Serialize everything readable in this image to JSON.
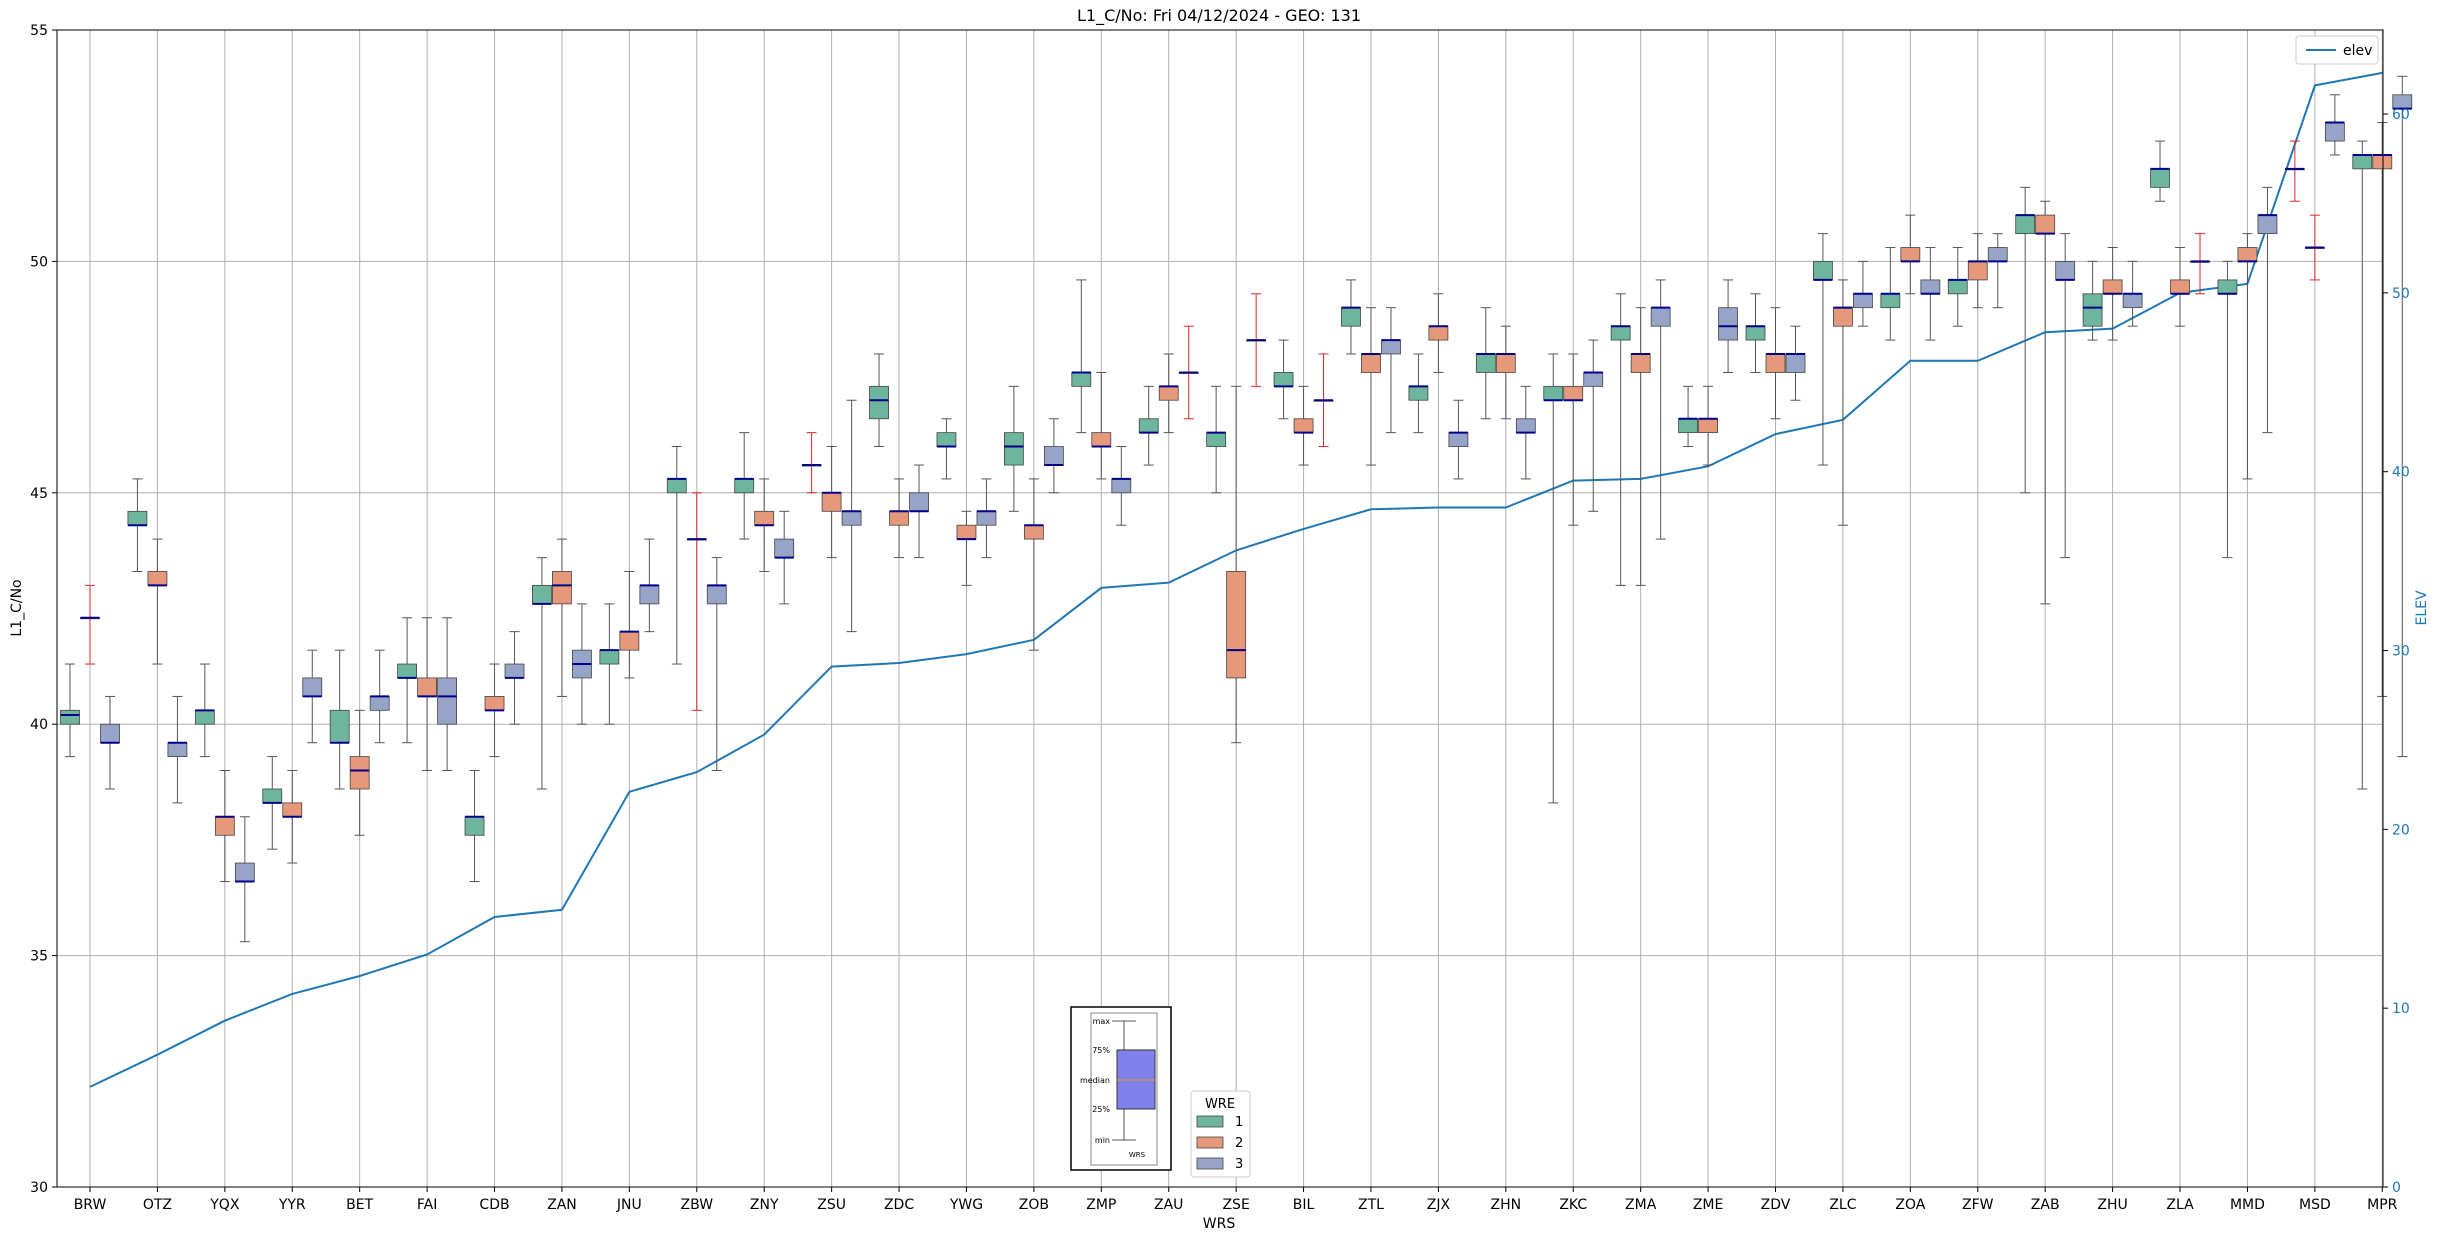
{
  "chart_data": {
    "type": "box",
    "title": "L1_C/No: Fri 04/12/2024 - GEO: 131",
    "xlabel": "WRS",
    "ylabel": "L1_C/No",
    "y2label": "ELEV",
    "ylim": [
      30,
      55
    ],
    "y2lim": [
      0,
      64.7
    ],
    "yticks": [
      30,
      35,
      40,
      45,
      50,
      55
    ],
    "y2ticks": [
      0,
      10,
      20,
      30,
      40,
      50,
      60
    ],
    "grid": true,
    "categories": [
      "BRW",
      "OTZ",
      "YQX",
      "YYR",
      "BET",
      "FAI",
      "CDB",
      "ZAN",
      "JNU",
      "ZBW",
      "ZNY",
      "ZSU",
      "ZDC",
      "YWG",
      "ZOB",
      "ZMP",
      "ZAU",
      "ZSE",
      "BIL",
      "ZTL",
      "ZJX",
      "ZHN",
      "ZKC",
      "ZMA",
      "ZME",
      "ZDV",
      "ZLC",
      "ZOA",
      "ZFW",
      "ZAB",
      "ZHU",
      "ZLA",
      "MMD",
      "MSD",
      "MPR"
    ],
    "elev_series": {
      "name": "elev",
      "values": [
        5.6,
        7.4,
        9.3,
        10.8,
        11.8,
        13.0,
        15.1,
        15.5,
        22.1,
        23.2,
        25.3,
        29.1,
        29.3,
        29.8,
        30.6,
        33.5,
        33.8,
        35.6,
        36.8,
        37.9,
        38.0,
        38.0,
        39.5,
        39.6,
        40.3,
        42.1,
        42.9,
        46.2,
        46.2,
        47.8,
        48.0,
        50.0,
        50.5,
        61.6,
        62.3
      ]
    },
    "wre_legend": {
      "title": "WRE",
      "items": [
        {
          "label": "1",
          "color": "#6db59c"
        },
        {
          "label": "2",
          "color": "#e5987a"
        },
        {
          "label": "3",
          "color": "#96a4c8"
        }
      ]
    },
    "elev_legend": {
      "label": "elev",
      "color": "#1f77b4"
    },
    "inset_legend": {
      "labels": [
        "max",
        "75%",
        "median",
        "25%",
        "min"
      ],
      "xlabel": "WRS"
    },
    "boxes": [
      {
        "wrs": "BRW",
        "wre": 1,
        "min": 39.3,
        "q1": 40.0,
        "median": 40.2,
        "q3": 40.3,
        "max": 41.3
      },
      {
        "wrs": "BRW",
        "wre": 2,
        "min": 41.3,
        "q1": 42.3,
        "median": 42.3,
        "q3": 42.3,
        "max": 43.0
      },
      {
        "wrs": "BRW",
        "wre": 3,
        "min": 38.6,
        "q1": 39.6,
        "median": 39.6,
        "q3": 40.0,
        "max": 40.6
      },
      {
        "wrs": "OTZ",
        "wre": 1,
        "min": 43.3,
        "q1": 44.3,
        "median": 44.3,
        "q3": 44.6,
        "max": 45.3
      },
      {
        "wrs": "OTZ",
        "wre": 2,
        "min": 41.3,
        "q1": 43.0,
        "median": 43.0,
        "q3": 43.3,
        "max": 44.0
      },
      {
        "wrs": "OTZ",
        "wre": 3,
        "min": 38.3,
        "q1": 39.3,
        "median": 39.6,
        "q3": 39.6,
        "max": 40.6
      },
      {
        "wrs": "YQX",
        "wre": 1,
        "min": 39.3,
        "q1": 40.0,
        "median": 40.3,
        "q3": 40.3,
        "max": 41.3
      },
      {
        "wrs": "YQX",
        "wre": 2,
        "min": 36.6,
        "q1": 37.6,
        "median": 38.0,
        "q3": 38.0,
        "max": 39.0
      },
      {
        "wrs": "YQX",
        "wre": 3,
        "min": 35.3,
        "q1": 36.6,
        "median": 36.6,
        "q3": 37.0,
        "max": 38.0
      },
      {
        "wrs": "YYR",
        "wre": 1,
        "min": 37.3,
        "q1": 38.3,
        "median": 38.3,
        "q3": 38.6,
        "max": 39.3
      },
      {
        "wrs": "YYR",
        "wre": 2,
        "min": 37.0,
        "q1": 38.0,
        "median": 38.0,
        "q3": 38.3,
        "max": 39.0
      },
      {
        "wrs": "YYR",
        "wre": 3,
        "min": 39.6,
        "q1": 40.6,
        "median": 40.6,
        "q3": 41.0,
        "max": 41.6
      },
      {
        "wrs": "BET",
        "wre": 1,
        "min": 38.6,
        "q1": 39.6,
        "median": 39.6,
        "q3": 40.3,
        "max": 41.6
      },
      {
        "wrs": "BET",
        "wre": 2,
        "min": 37.6,
        "q1": 38.6,
        "median": 39.0,
        "q3": 39.3,
        "max": 40.3
      },
      {
        "wrs": "BET",
        "wre": 3,
        "min": 39.6,
        "q1": 40.3,
        "median": 40.6,
        "q3": 40.6,
        "max": 41.6
      },
      {
        "wrs": "FAI",
        "wre": 1,
        "min": 39.6,
        "q1": 41.0,
        "median": 41.0,
        "q3": 41.3,
        "max": 42.3
      },
      {
        "wrs": "FAI",
        "wre": 2,
        "min": 39.0,
        "q1": 40.6,
        "median": 40.6,
        "q3": 41.0,
        "max": 42.3
      },
      {
        "wrs": "FAI",
        "wre": 3,
        "min": 39.0,
        "q1": 40.0,
        "median": 40.6,
        "q3": 41.0,
        "max": 42.3
      },
      {
        "wrs": "CDB",
        "wre": 1,
        "min": 36.6,
        "q1": 37.6,
        "median": 38.0,
        "q3": 38.0,
        "max": 39.0
      },
      {
        "wrs": "CDB",
        "wre": 2,
        "min": 39.3,
        "q1": 40.3,
        "median": 40.3,
        "q3": 40.6,
        "max": 41.3
      },
      {
        "wrs": "CDB",
        "wre": 3,
        "min": 40.0,
        "q1": 41.0,
        "median": 41.0,
        "q3": 41.3,
        "max": 42.0
      },
      {
        "wrs": "ZAN",
        "wre": 1,
        "min": 38.6,
        "q1": 42.6,
        "median": 42.6,
        "q3": 43.0,
        "max": 43.6
      },
      {
        "wrs": "ZAN",
        "wre": 2,
        "min": 40.6,
        "q1": 42.6,
        "median": 43.0,
        "q3": 43.3,
        "max": 44.0
      },
      {
        "wrs": "ZAN",
        "wre": 3,
        "min": 40.0,
        "q1": 41.0,
        "median": 41.3,
        "q3": 41.6,
        "max": 42.6
      },
      {
        "wrs": "JNU",
        "wre": 1,
        "min": 40.0,
        "q1": 41.3,
        "median": 41.6,
        "q3": 41.6,
        "max": 42.6
      },
      {
        "wrs": "JNU",
        "wre": 2,
        "min": 41.0,
        "q1": 41.6,
        "median": 42.0,
        "q3": 42.0,
        "max": 43.3
      },
      {
        "wrs": "JNU",
        "wre": 3,
        "min": 42.0,
        "q1": 42.6,
        "median": 43.0,
        "q3": 43.0,
        "max": 44.0
      },
      {
        "wrs": "ZBW",
        "wre": 1,
        "min": 41.3,
        "q1": 45.0,
        "median": 45.3,
        "q3": 45.3,
        "max": 46.0
      },
      {
        "wrs": "ZBW",
        "wre": 2,
        "min": 40.3,
        "q1": 44.0,
        "median": 44.0,
        "q3": 44.0,
        "max": 45.0
      },
      {
        "wrs": "ZBW",
        "wre": 3,
        "min": 39.0,
        "q1": 42.6,
        "median": 43.0,
        "q3": 43.0,
        "max": 43.6
      },
      {
        "wrs": "ZNY",
        "wre": 1,
        "min": 44.0,
        "q1": 45.0,
        "median": 45.3,
        "q3": 45.3,
        "max": 46.3
      },
      {
        "wrs": "ZNY",
        "wre": 2,
        "min": 43.3,
        "q1": 44.3,
        "median": 44.3,
        "q3": 44.6,
        "max": 45.3
      },
      {
        "wrs": "ZNY",
        "wre": 3,
        "min": 42.6,
        "q1": 43.6,
        "median": 43.6,
        "q3": 44.0,
        "max": 44.6
      },
      {
        "wrs": "ZSU",
        "wre": 1,
        "min": 45.0,
        "q1": 45.6,
        "median": 45.6,
        "q3": 45.6,
        "max": 46.3
      },
      {
        "wrs": "ZSU",
        "wre": 2,
        "min": 43.6,
        "q1": 44.6,
        "median": 45.0,
        "q3": 45.0,
        "max": 46.0
      },
      {
        "wrs": "ZSU",
        "wre": 3,
        "min": 42.0,
        "q1": 44.3,
        "median": 44.6,
        "q3": 44.6,
        "max": 47.0
      },
      {
        "wrs": "ZDC",
        "wre": 1,
        "min": 46.0,
        "q1": 46.6,
        "median": 47.0,
        "q3": 47.3,
        "max": 48.0
      },
      {
        "wrs": "ZDC",
        "wre": 2,
        "min": 43.6,
        "q1": 44.3,
        "median": 44.6,
        "q3": 44.6,
        "max": 45.3
      },
      {
        "wrs": "ZDC",
        "wre": 3,
        "min": 43.6,
        "q1": 44.6,
        "median": 44.6,
        "q3": 45.0,
        "max": 45.6
      },
      {
        "wrs": "YWG",
        "wre": 1,
        "min": 45.3,
        "q1": 46.0,
        "median": 46.0,
        "q3": 46.3,
        "max": 46.6
      },
      {
        "wrs": "YWG",
        "wre": 2,
        "min": 43.0,
        "q1": 44.0,
        "median": 44.0,
        "q3": 44.3,
        "max": 44.6
      },
      {
        "wrs": "YWG",
        "wre": 3,
        "min": 43.6,
        "q1": 44.3,
        "median": 44.6,
        "q3": 44.6,
        "max": 45.3
      },
      {
        "wrs": "ZOB",
        "wre": 1,
        "min": 44.6,
        "q1": 45.6,
        "median": 46.0,
        "q3": 46.3,
        "max": 47.3
      },
      {
        "wrs": "ZOB",
        "wre": 2,
        "min": 41.6,
        "q1": 44.0,
        "median": 44.3,
        "q3": 44.3,
        "max": 45.3
      },
      {
        "wrs": "ZOB",
        "wre": 3,
        "min": 45.0,
        "q1": 45.6,
        "median": 45.6,
        "q3": 46.0,
        "max": 46.6
      },
      {
        "wrs": "ZMP",
        "wre": 1,
        "min": 46.3,
        "q1": 47.3,
        "median": 47.6,
        "q3": 47.6,
        "max": 49.6
      },
      {
        "wrs": "ZMP",
        "wre": 2,
        "min": 45.3,
        "q1": 46.0,
        "median": 46.0,
        "q3": 46.3,
        "max": 47.6
      },
      {
        "wrs": "ZMP",
        "wre": 3,
        "min": 44.3,
        "q1": 45.0,
        "median": 45.3,
        "q3": 45.3,
        "max": 46.0
      },
      {
        "wrs": "ZAU",
        "wre": 1,
        "min": 45.6,
        "q1": 46.3,
        "median": 46.3,
        "q3": 46.6,
        "max": 47.3
      },
      {
        "wrs": "ZAU",
        "wre": 2,
        "min": 46.3,
        "q1": 47.0,
        "median": 47.3,
        "q3": 47.3,
        "max": 48.0
      },
      {
        "wrs": "ZAU",
        "wre": 3,
        "min": 46.6,
        "q1": 47.6,
        "median": 47.6,
        "q3": 47.6,
        "max": 48.6
      },
      {
        "wrs": "ZSE",
        "wre": 1,
        "min": 45.0,
        "q1": 46.0,
        "median": 46.3,
        "q3": 46.3,
        "max": 47.3
      },
      {
        "wrs": "ZSE",
        "wre": 2,
        "min": 39.6,
        "q1": 41.0,
        "median": 41.6,
        "q3": 43.3,
        "max": 47.3
      },
      {
        "wrs": "ZSE",
        "wre": 3,
        "min": 47.3,
        "q1": 48.3,
        "median": 48.3,
        "q3": 48.3,
        "max": 49.3
      },
      {
        "wrs": "BIL",
        "wre": 1,
        "min": 46.6,
        "q1": 47.3,
        "median": 47.3,
        "q3": 47.6,
        "max": 48.3
      },
      {
        "wrs": "BIL",
        "wre": 2,
        "min": 45.6,
        "q1": 46.3,
        "median": 46.3,
        "q3": 46.6,
        "max": 47.3
      },
      {
        "wrs": "BIL",
        "wre": 3,
        "min": 46.0,
        "q1": 47.0,
        "median": 47.0,
        "q3": 47.0,
        "max": 48.0
      },
      {
        "wrs": "ZTL",
        "wre": 1,
        "min": 48.0,
        "q1": 48.6,
        "median": 49.0,
        "q3": 49.0,
        "max": 49.6
      },
      {
        "wrs": "ZTL",
        "wre": 2,
        "min": 45.6,
        "q1": 47.6,
        "median": 48.0,
        "q3": 48.0,
        "max": 49.0
      },
      {
        "wrs": "ZTL",
        "wre": 3,
        "min": 46.3,
        "q1": 48.0,
        "median": 48.3,
        "q3": 48.3,
        "max": 49.0
      },
      {
        "wrs": "ZJX",
        "wre": 1,
        "min": 46.3,
        "q1": 47.0,
        "median": 47.3,
        "q3": 47.3,
        "max": 48.0
      },
      {
        "wrs": "ZJX",
        "wre": 2,
        "min": 47.6,
        "q1": 48.3,
        "median": 48.6,
        "q3": 48.6,
        "max": 49.3
      },
      {
        "wrs": "ZJX",
        "wre": 3,
        "min": 45.3,
        "q1": 46.0,
        "median": 46.3,
        "q3": 46.3,
        "max": 47.0
      },
      {
        "wrs": "ZHN",
        "wre": 1,
        "min": 46.6,
        "q1": 47.6,
        "median": 48.0,
        "q3": 48.0,
        "max": 49.0
      },
      {
        "wrs": "ZHN",
        "wre": 2,
        "min": 46.6,
        "q1": 47.6,
        "median": 48.0,
        "q3": 48.0,
        "max": 48.6
      },
      {
        "wrs": "ZHN",
        "wre": 3,
        "min": 45.3,
        "q1": 46.3,
        "median": 46.3,
        "q3": 46.6,
        "max": 47.3
      },
      {
        "wrs": "ZKC",
        "wre": 1,
        "min": 38.3,
        "q1": 47.0,
        "median": 47.0,
        "q3": 47.3,
        "max": 48.0
      },
      {
        "wrs": "ZKC",
        "wre": 2,
        "min": 44.3,
        "q1": 47.0,
        "median": 47.0,
        "q3": 47.3,
        "max": 48.0
      },
      {
        "wrs": "ZKC",
        "wre": 3,
        "min": 44.6,
        "q1": 47.3,
        "median": 47.6,
        "q3": 47.6,
        "max": 48.3
      },
      {
        "wrs": "ZMA",
        "wre": 1,
        "min": 43.0,
        "q1": 48.3,
        "median": 48.6,
        "q3": 48.6,
        "max": 49.3
      },
      {
        "wrs": "ZMA",
        "wre": 2,
        "min": 43.0,
        "q1": 47.6,
        "median": 48.0,
        "q3": 48.0,
        "max": 49.0
      },
      {
        "wrs": "ZMA",
        "wre": 3,
        "min": 44.0,
        "q1": 48.6,
        "median": 49.0,
        "q3": 49.0,
        "max": 49.6
      },
      {
        "wrs": "ZME",
        "wre": 1,
        "min": 46.0,
        "q1": 46.3,
        "median": 46.6,
        "q3": 46.6,
        "max": 47.3
      },
      {
        "wrs": "ZME",
        "wre": 2,
        "min": 45.6,
        "q1": 46.3,
        "median": 46.6,
        "q3": 46.6,
        "max": 47.3
      },
      {
        "wrs": "ZME",
        "wre": 3,
        "min": 47.6,
        "q1": 48.3,
        "median": 48.6,
        "q3": 49.0,
        "max": 49.6
      },
      {
        "wrs": "ZDV",
        "wre": 1,
        "min": 47.6,
        "q1": 48.3,
        "median": 48.6,
        "q3": 48.6,
        "max": 49.3
      },
      {
        "wrs": "ZDV",
        "wre": 2,
        "min": 46.6,
        "q1": 47.6,
        "median": 48.0,
        "q3": 48.0,
        "max": 49.0
      },
      {
        "wrs": "ZDV",
        "wre": 3,
        "min": 47.0,
        "q1": 47.6,
        "median": 48.0,
        "q3": 48.0,
        "max": 48.6
      },
      {
        "wrs": "ZLC",
        "wre": 1,
        "min": 45.6,
        "q1": 49.6,
        "median": 49.6,
        "q3": 50.0,
        "max": 50.6
      },
      {
        "wrs": "ZLC",
        "wre": 2,
        "min": 44.3,
        "q1": 48.6,
        "median": 49.0,
        "q3": 49.0,
        "max": 49.6
      },
      {
        "wrs": "ZLC",
        "wre": 3,
        "min": 48.6,
        "q1": 49.0,
        "median": 49.3,
        "q3": 49.3,
        "max": 50.0
      },
      {
        "wrs": "ZOA",
        "wre": 1,
        "min": 48.3,
        "q1": 49.0,
        "median": 49.3,
        "q3": 49.3,
        "max": 50.3
      },
      {
        "wrs": "ZOA",
        "wre": 2,
        "min": 49.3,
        "q1": 50.0,
        "median": 50.0,
        "q3": 50.3,
        "max": 51.0
      },
      {
        "wrs": "ZOA",
        "wre": 3,
        "min": 48.3,
        "q1": 49.3,
        "median": 49.3,
        "q3": 49.6,
        "max": 50.3
      },
      {
        "wrs": "ZFW",
        "wre": 1,
        "min": 48.6,
        "q1": 49.3,
        "median": 49.6,
        "q3": 49.6,
        "max": 50.3
      },
      {
        "wrs": "ZFW",
        "wre": 2,
        "min": 49.0,
        "q1": 49.6,
        "median": 50.0,
        "q3": 50.0,
        "max": 50.6
      },
      {
        "wrs": "ZFW",
        "wre": 3,
        "min": 49.0,
        "q1": 50.0,
        "median": 50.0,
        "q3": 50.3,
        "max": 50.6
      },
      {
        "wrs": "ZAB",
        "wre": 1,
        "min": 45.0,
        "q1": 50.6,
        "median": 51.0,
        "q3": 51.0,
        "max": 51.6
      },
      {
        "wrs": "ZAB",
        "wre": 2,
        "min": 42.6,
        "q1": 50.6,
        "median": 50.6,
        "q3": 51.0,
        "max": 51.3
      },
      {
        "wrs": "ZAB",
        "wre": 3,
        "min": 43.6,
        "q1": 49.6,
        "median": 49.6,
        "q3": 50.0,
        "max": 50.6
      },
      {
        "wrs": "ZHU",
        "wre": 1,
        "min": 48.3,
        "q1": 48.6,
        "median": 49.0,
        "q3": 49.3,
        "max": 50.0
      },
      {
        "wrs": "ZHU",
        "wre": 2,
        "min": 48.3,
        "q1": 49.3,
        "median": 49.3,
        "q3": 49.6,
        "max": 50.3
      },
      {
        "wrs": "ZHU",
        "wre": 3,
        "min": 48.6,
        "q1": 49.0,
        "median": 49.3,
        "q3": 49.3,
        "max": 50.0
      },
      {
        "wrs": "ZLA",
        "wre": 1,
        "min": 51.3,
        "q1": 51.6,
        "median": 52.0,
        "q3": 52.0,
        "max": 52.6
      },
      {
        "wrs": "ZLA",
        "wre": 2,
        "min": 48.6,
        "q1": 49.3,
        "median": 49.3,
        "q3": 49.6,
        "max": 50.3
      },
      {
        "wrs": "ZLA",
        "wre": 3,
        "min": 49.3,
        "q1": 50.0,
        "median": 50.0,
        "q3": 50.0,
        "max": 50.6
      },
      {
        "wrs": "MMD",
        "wre": 1,
        "min": 43.6,
        "q1": 49.3,
        "median": 49.3,
        "q3": 49.6,
        "max": 50.0
      },
      {
        "wrs": "MMD",
        "wre": 2,
        "min": 45.3,
        "q1": 50.0,
        "median": 50.0,
        "q3": 50.3,
        "max": 50.6
      },
      {
        "wrs": "MMD",
        "wre": 3,
        "min": 46.3,
        "q1": 50.6,
        "median": 51.0,
        "q3": 51.0,
        "max": 51.6
      },
      {
        "wrs": "MSD",
        "wre": 1,
        "min": 51.3,
        "q1": 52.0,
        "median": 52.0,
        "q3": 52.0,
        "max": 52.6
      },
      {
        "wrs": "MSD",
        "wre": 2,
        "min": 49.6,
        "q1": 50.3,
        "median": 50.3,
        "q3": 50.3,
        "max": 51.0
      },
      {
        "wrs": "MSD",
        "wre": 3,
        "min": 52.3,
        "q1": 52.6,
        "median": 53.0,
        "q3": 53.0,
        "max": 53.6
      },
      {
        "wrs": "MPR",
        "wre": 1,
        "min": 38.6,
        "q1": 52.0,
        "median": 52.3,
        "q3": 52.3,
        "max": 52.6
      },
      {
        "wrs": "MPR",
        "wre": 2,
        "min": 40.6,
        "q1": 52.0,
        "median": 52.3,
        "q3": 52.3,
        "max": 53.0
      },
      {
        "wrs": "MPR",
        "wre": 3,
        "min": 39.3,
        "q1": 53.3,
        "median": 53.3,
        "q3": 53.6,
        "max": 54.0
      }
    ]
  }
}
